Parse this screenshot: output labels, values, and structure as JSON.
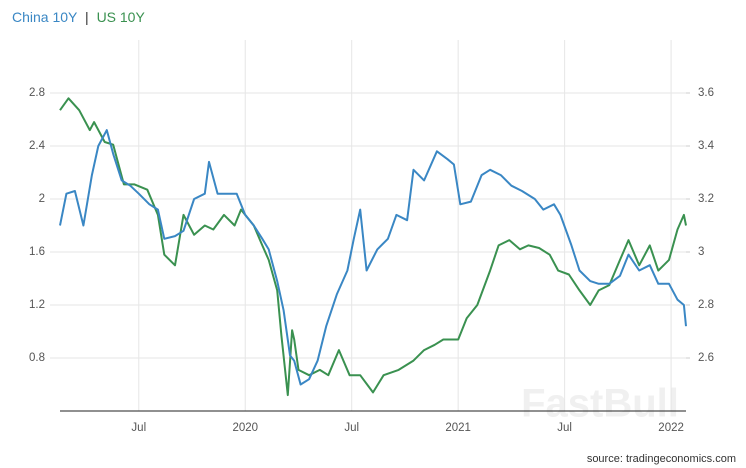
{
  "chart_data": {
    "type": "line",
    "title_parts": [
      "China 10Y",
      "|",
      "US 10Y"
    ],
    "source": "source: tradingeconomics.com",
    "watermark": "FastBull",
    "grid": true,
    "xlim": [
      2019.13,
      2022.07
    ],
    "xticks": [
      {
        "value": 2019.5,
        "label": "Jul"
      },
      2020,
      {
        "value": 2020.5,
        "label": "Jul"
      },
      2021,
      {
        "value": 2021.5,
        "label": "Jul"
      },
      2022
    ],
    "ylim": [
      0.4,
      3.2
    ],
    "yticks": [
      0.8,
      1.2,
      1.6,
      2,
      2.4,
      2.8
    ],
    "y2lim": [
      2.4,
      3.8
    ],
    "y2ticks": [
      2.6,
      2.8,
      3,
      3.2,
      3.4,
      3.6
    ],
    "series": [
      {
        "name": "China 10Y",
        "color": "#3a87c4",
        "axis": "y2",
        "x": [
          2019.13,
          2019.16,
          2019.2,
          2019.24,
          2019.28,
          2019.31,
          2019.35,
          2019.38,
          2019.42,
          2019.46,
          2019.5,
          2019.55,
          2019.59,
          2019.62,
          2019.67,
          2019.71,
          2019.76,
          2019.81,
          2019.83,
          2019.87,
          2019.92,
          2019.96,
          2020.0,
          2020.04,
          2020.08,
          2020.11,
          2020.15,
          2020.18,
          2020.21,
          2020.23,
          2020.26,
          2020.3,
          2020.34,
          2020.38,
          2020.43,
          2020.48,
          2020.51,
          2020.54,
          2020.57,
          2020.62,
          2020.67,
          2020.71,
          2020.76,
          2020.79,
          2020.84,
          2020.9,
          2020.95,
          2020.98,
          2021.01,
          2021.06,
          2021.11,
          2021.15,
          2021.2,
          2021.25,
          2021.3,
          2021.36,
          2021.4,
          2021.45,
          2021.48,
          2021.53,
          2021.57,
          2021.62,
          2021.66,
          2021.71,
          2021.76,
          2021.8,
          2021.85,
          2021.9,
          2021.94,
          2021.99,
          2022.03,
          2022.06,
          2022.07
        ],
        "values": [
          3.1,
          3.22,
          3.23,
          3.1,
          3.29,
          3.4,
          3.46,
          3.37,
          3.27,
          3.25,
          3.22,
          3.18,
          3.16,
          3.05,
          3.06,
          3.08,
          3.2,
          3.22,
          3.34,
          3.22,
          3.22,
          3.22,
          3.14,
          3.1,
          3.05,
          3.01,
          2.89,
          2.78,
          2.61,
          2.59,
          2.5,
          2.52,
          2.59,
          2.72,
          2.84,
          2.93,
          3.05,
          3.16,
          2.93,
          3.01,
          3.05,
          3.14,
          3.12,
          3.31,
          3.27,
          3.38,
          3.35,
          3.33,
          3.18,
          3.19,
          3.29,
          3.31,
          3.29,
          3.25,
          3.23,
          3.2,
          3.16,
          3.18,
          3.14,
          3.03,
          2.93,
          2.89,
          2.88,
          2.88,
          2.91,
          2.99,
          2.93,
          2.95,
          2.88,
          2.88,
          2.82,
          2.8,
          2.72
        ]
      },
      {
        "name": "US 10Y",
        "color": "#3a9150",
        "axis": "y",
        "x": [
          2019.13,
          2019.17,
          2019.22,
          2019.27,
          2019.29,
          2019.34,
          2019.38,
          2019.43,
          2019.48,
          2019.54,
          2019.59,
          2019.62,
          2019.67,
          2019.71,
          2019.76,
          2019.81,
          2019.85,
          2019.9,
          2019.95,
          2019.98,
          2020.04,
          2020.08,
          2020.11,
          2020.15,
          2020.17,
          2020.2,
          2020.22,
          2020.23,
          2020.25,
          2020.3,
          2020.35,
          2020.39,
          2020.44,
          2020.49,
          2020.54,
          2020.6,
          2020.65,
          2020.72,
          2020.79,
          2020.84,
          2020.89,
          2020.93,
          2021.0,
          2021.04,
          2021.09,
          2021.15,
          2021.19,
          2021.24,
          2021.29,
          2021.33,
          2021.38,
          2021.43,
          2021.47,
          2021.52,
          2021.57,
          2021.62,
          2021.66,
          2021.71,
          2021.76,
          2021.8,
          2021.85,
          2021.9,
          2021.94,
          2021.99,
          2022.03,
          2022.06,
          2022.07
        ],
        "values": [
          2.67,
          2.76,
          2.67,
          2.52,
          2.58,
          2.43,
          2.41,
          2.11,
          2.11,
          2.07,
          1.88,
          1.58,
          1.5,
          1.88,
          1.73,
          1.8,
          1.77,
          1.88,
          1.8,
          1.92,
          1.8,
          1.65,
          1.54,
          1.31,
          0.97,
          0.52,
          1.01,
          0.94,
          0.71,
          0.67,
          0.71,
          0.67,
          0.86,
          0.67,
          0.67,
          0.54,
          0.67,
          0.71,
          0.78,
          0.86,
          0.9,
          0.94,
          0.94,
          1.1,
          1.2,
          1.46,
          1.65,
          1.69,
          1.62,
          1.65,
          1.63,
          1.58,
          1.46,
          1.43,
          1.31,
          1.2,
          1.31,
          1.35,
          1.54,
          1.69,
          1.5,
          1.65,
          1.46,
          1.54,
          1.77,
          1.88,
          1.8
        ]
      }
    ]
  }
}
